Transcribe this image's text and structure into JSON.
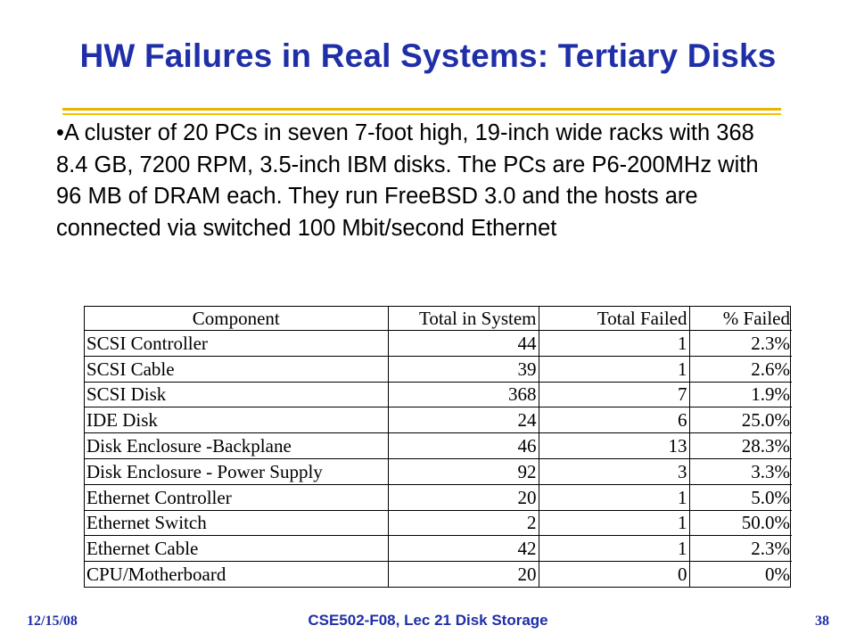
{
  "slide": {
    "title": "HW Failures in Real Systems: Tertiary Disks",
    "body": "•A cluster of 20 PCs in seven 7-foot high, 19-inch wide racks with 368 8.4 GB, 7200 RPM, 3.5-inch IBM disks. The PCs are P6-200MHz with 96 MB of DRAM each. They run FreeBSD 3.0 and the hosts are connected via switched 100 Mbit/second Ethernet",
    "accent_color": "#1f2fa8",
    "rule_color": "#e8b500"
  },
  "table": {
    "headers": [
      "Component",
      "Total in System",
      "Total Failed",
      "% Failed"
    ],
    "rows": [
      [
        "SCSI Controller",
        "44",
        "1",
        "2.3%"
      ],
      [
        "SCSI Cable",
        "39",
        "1",
        "2.6%"
      ],
      [
        "SCSI Disk",
        "368",
        "7",
        "1.9%"
      ],
      [
        "IDE Disk",
        "24",
        "6",
        "25.0%"
      ],
      [
        "Disk Enclosure -Backplane",
        "46",
        "13",
        "28.3%"
      ],
      [
        "Disk Enclosure - Power Supply",
        "92",
        "3",
        "3.3%"
      ],
      [
        "Ethernet Controller",
        "20",
        "1",
        "5.0%"
      ],
      [
        "Ethernet Switch",
        "2",
        "1",
        "50.0%"
      ],
      [
        "Ethernet Cable",
        "42",
        "1",
        "2.3%"
      ],
      [
        "CPU/Motherboard",
        "20",
        "0",
        "0%"
      ]
    ]
  },
  "footer": {
    "date": "12/15/08",
    "course": "CSE502-F08, Lec 21 Disk Storage",
    "page": "38"
  }
}
